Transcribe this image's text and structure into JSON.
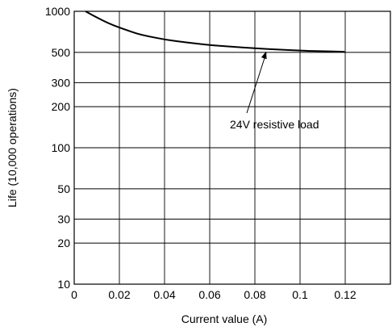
{
  "chart_data": {
    "type": "line",
    "xlabel": "Current value (A)",
    "ylabel": "Life (10,000 operations)",
    "xlim": [
      0,
      0.14
    ],
    "ylim": [
      10,
      1000
    ],
    "y_scale": "log",
    "grid": true,
    "x_ticks": [
      {
        "value": 0,
        "label": "0"
      },
      {
        "value": 0.02,
        "label": "0.02"
      },
      {
        "value": 0.04,
        "label": "0.04"
      },
      {
        "value": 0.06,
        "label": "0.06"
      },
      {
        "value": 0.08,
        "label": "0.08"
      },
      {
        "value": 0.1,
        "label": "0.1"
      },
      {
        "value": 0.12,
        "label": "0.12"
      }
    ],
    "x_grid_values": [
      0,
      0.02,
      0.04,
      0.06,
      0.08,
      0.1,
      0.12,
      0.14
    ],
    "y_ticks": [
      {
        "value": 10,
        "label": "10"
      },
      {
        "value": 20,
        "label": "20"
      },
      {
        "value": 30,
        "label": "30"
      },
      {
        "value": 50,
        "label": "50"
      },
      {
        "value": 100,
        "label": "100"
      },
      {
        "value": 200,
        "label": "200"
      },
      {
        "value": 300,
        "label": "300"
      },
      {
        "value": 500,
        "label": "500"
      },
      {
        "value": 1000,
        "label": "1000"
      }
    ],
    "series": [
      {
        "name": "24V resistive load",
        "color": "#000000",
        "x": [
          0.005,
          0.01,
          0.015,
          0.02,
          0.025,
          0.03,
          0.04,
          0.05,
          0.06,
          0.07,
          0.08,
          0.09,
          0.1,
          0.11,
          0.12
        ],
        "y": [
          1000,
          900,
          820,
          760,
          710,
          670,
          620,
          590,
          565,
          550,
          535,
          525,
          515,
          510,
          505
        ]
      }
    ],
    "annotations": [
      {
        "text": "24V resistive load",
        "points_to": {
          "x": 0.085,
          "y": 530
        }
      }
    ]
  }
}
